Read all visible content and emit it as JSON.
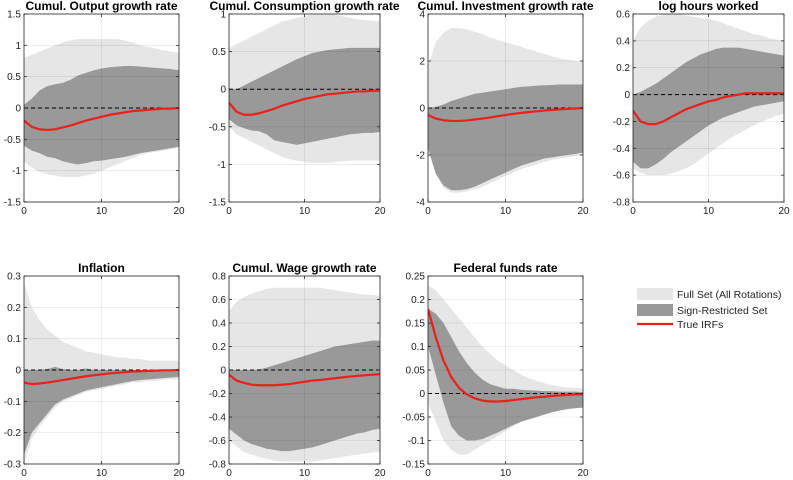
{
  "legend": {
    "placement": "right",
    "entries": [
      {
        "label": "Full Set (All Rotations)",
        "color": "#e6e6e6",
        "kind": "band"
      },
      {
        "label": "Sign-Restricted Set",
        "color": "#999999",
        "kind": "band"
      },
      {
        "label": "True IRFs",
        "color": "#e8211a",
        "kind": "line"
      }
    ]
  },
  "chart_data": [
    {
      "type": "area",
      "title": "Cumul. Output growth rate",
      "x": [
        0,
        1,
        2,
        3,
        4,
        5,
        6,
        7,
        8,
        9,
        10,
        11,
        12,
        13,
        14,
        15,
        16,
        17,
        18,
        19,
        20
      ],
      "xlim": [
        0,
        20
      ],
      "xticks": [
        0,
        10,
        20
      ],
      "ylim": [
        -1.5,
        1.5
      ],
      "yticks": [
        -1.5,
        -1,
        -0.5,
        0,
        0.5,
        1,
        1.5
      ],
      "full_upper": [
        0.8,
        0.85,
        0.9,
        0.95,
        1.0,
        1.05,
        1.08,
        1.1,
        1.1,
        1.1,
        1.1,
        1.1,
        1.1,
        1.08,
        1.05,
        1.0,
        0.98,
        0.95,
        0.92,
        0.9,
        0.88
      ],
      "full_lower": [
        -0.85,
        -0.95,
        -1.02,
        -1.06,
        -1.08,
        -1.1,
        -1.1,
        -1.1,
        -1.08,
        -1.05,
        -1.0,
        -0.95,
        -0.9,
        -0.85,
        -0.8,
        -0.75,
        -0.72,
        -0.7,
        -0.68,
        -0.65,
        -0.62
      ],
      "sign_upper": [
        0.05,
        0.15,
        0.28,
        0.35,
        0.38,
        0.4,
        0.45,
        0.52,
        0.56,
        0.6,
        0.63,
        0.65,
        0.66,
        0.67,
        0.67,
        0.66,
        0.65,
        0.64,
        0.63,
        0.62,
        0.6
      ],
      "sign_lower": [
        -0.6,
        -0.68,
        -0.72,
        -0.78,
        -0.8,
        -0.85,
        -0.88,
        -0.9,
        -0.88,
        -0.85,
        -0.84,
        -0.82,
        -0.8,
        -0.78,
        -0.75,
        -0.72,
        -0.7,
        -0.68,
        -0.66,
        -0.64,
        -0.62
      ],
      "true_irf": [
        -0.2,
        -0.3,
        -0.34,
        -0.35,
        -0.34,
        -0.31,
        -0.28,
        -0.24,
        -0.2,
        -0.17,
        -0.14,
        -0.11,
        -0.09,
        -0.07,
        -0.05,
        -0.04,
        -0.03,
        -0.02,
        -0.01,
        -0.01,
        0
      ]
    },
    {
      "type": "area",
      "title": "Cumul. Consumption growth rate",
      "x": [
        0,
        1,
        2,
        3,
        4,
        5,
        6,
        7,
        8,
        9,
        10,
        11,
        12,
        13,
        14,
        15,
        16,
        17,
        18,
        19,
        20
      ],
      "xlim": [
        0,
        20
      ],
      "xticks": [
        0,
        10,
        20
      ],
      "ylim": [
        -1.5,
        1
      ],
      "yticks": [
        -1.5,
        -1,
        -0.5,
        0,
        0.5,
        1
      ],
      "full_upper": [
        0.55,
        0.6,
        0.65,
        0.7,
        0.75,
        0.8,
        0.85,
        0.9,
        0.92,
        0.95,
        0.97,
        0.99,
        1.0,
        1.0,
        0.99,
        0.97,
        0.95,
        0.93,
        0.92,
        0.91,
        0.9
      ],
      "full_lower": [
        -0.5,
        -0.6,
        -0.65,
        -0.7,
        -0.75,
        -0.8,
        -0.85,
        -0.9,
        -0.93,
        -0.95,
        -0.97,
        -0.98,
        -0.98,
        -0.98,
        -0.97,
        -0.96,
        -0.95,
        -0.95,
        -0.95,
        -0.95,
        -0.95
      ],
      "sign_upper": [
        0.0,
        0.0,
        0.05,
        0.1,
        0.15,
        0.2,
        0.25,
        0.3,
        0.35,
        0.4,
        0.44,
        0.48,
        0.5,
        0.52,
        0.53,
        0.54,
        0.55,
        0.55,
        0.55,
        0.55,
        0.55
      ],
      "sign_lower": [
        -0.4,
        -0.48,
        -0.52,
        -0.55,
        -0.56,
        -0.6,
        -0.68,
        -0.7,
        -0.72,
        -0.74,
        -0.72,
        -0.7,
        -0.68,
        -0.66,
        -0.64,
        -0.62,
        -0.6,
        -0.59,
        -0.58,
        -0.58,
        -0.57
      ],
      "true_irf": [
        -0.18,
        -0.3,
        -0.34,
        -0.34,
        -0.32,
        -0.29,
        -0.26,
        -0.22,
        -0.19,
        -0.16,
        -0.13,
        -0.11,
        -0.09,
        -0.07,
        -0.06,
        -0.05,
        -0.04,
        -0.03,
        -0.03,
        -0.02,
        -0.02
      ]
    },
    {
      "type": "area",
      "title": "Cumul. Investment growth rate",
      "x": [
        0,
        1,
        2,
        3,
        4,
        5,
        6,
        7,
        8,
        9,
        10,
        11,
        12,
        13,
        14,
        15,
        16,
        17,
        18,
        19,
        20
      ],
      "xlim": [
        0,
        20
      ],
      "xticks": [
        0,
        10,
        20
      ],
      "ylim": [
        -4,
        4
      ],
      "yticks": [
        -4,
        -2,
        0,
        2,
        4
      ],
      "full_upper": [
        1.8,
        2.8,
        3.2,
        3.4,
        3.4,
        3.35,
        3.25,
        3.15,
        3.0,
        2.9,
        2.8,
        2.7,
        2.6,
        2.5,
        2.4,
        2.3,
        2.2,
        2.1,
        2.05,
        2.0,
        1.95
      ],
      "full_lower": [
        -1.8,
        -2.8,
        -3.4,
        -3.6,
        -3.6,
        -3.55,
        -3.45,
        -3.35,
        -3.2,
        -3.05,
        -2.9,
        -2.75,
        -2.6,
        -2.5,
        -2.4,
        -2.3,
        -2.2,
        -2.15,
        -2.1,
        -2.05,
        -2.0
      ],
      "sign_upper": [
        0.0,
        0.05,
        0.15,
        0.3,
        0.4,
        0.5,
        0.6,
        0.65,
        0.7,
        0.75,
        0.8,
        0.85,
        0.9,
        0.92,
        0.95,
        0.97,
        0.98,
        1.0,
        1.0,
        1.0,
        1.0
      ],
      "sign_lower": [
        -1.7,
        -2.8,
        -3.3,
        -3.5,
        -3.5,
        -3.45,
        -3.35,
        -3.2,
        -3.05,
        -2.9,
        -2.75,
        -2.6,
        -2.45,
        -2.35,
        -2.25,
        -2.15,
        -2.1,
        -2.05,
        -2.0,
        -1.95,
        -1.9
      ],
      "true_irf": [
        -0.3,
        -0.45,
        -0.52,
        -0.55,
        -0.55,
        -0.53,
        -0.49,
        -0.45,
        -0.4,
        -0.35,
        -0.3,
        -0.25,
        -0.21,
        -0.17,
        -0.14,
        -0.11,
        -0.08,
        -0.06,
        -0.04,
        -0.02,
        0
      ]
    },
    {
      "type": "area",
      "title": "log hours worked",
      "x": [
        0,
        1,
        2,
        3,
        4,
        5,
        6,
        7,
        8,
        9,
        10,
        11,
        12,
        13,
        14,
        15,
        16,
        17,
        18,
        19,
        20
      ],
      "xlim": [
        0,
        20
      ],
      "xticks": [
        0,
        10,
        20
      ],
      "ylim": [
        -0.8,
        0.6
      ],
      "yticks": [
        -0.8,
        -0.6,
        -0.4,
        -0.2,
        0,
        0.2,
        0.4,
        0.6
      ],
      "full_upper": [
        0.4,
        0.5,
        0.55,
        0.58,
        0.6,
        0.6,
        0.6,
        0.59,
        0.58,
        0.57,
        0.56,
        0.55,
        0.53,
        0.51,
        0.49,
        0.47,
        0.45,
        0.44,
        0.42,
        0.41,
        0.4
      ],
      "full_lower": [
        -0.55,
        -0.58,
        -0.6,
        -0.6,
        -0.6,
        -0.59,
        -0.57,
        -0.55,
        -0.52,
        -0.48,
        -0.44,
        -0.4,
        -0.36,
        -0.32,
        -0.29,
        -0.26,
        -0.23,
        -0.2,
        -0.18,
        -0.16,
        -0.14
      ],
      "sign_upper": [
        0.0,
        0.02,
        0.05,
        0.08,
        0.12,
        0.16,
        0.2,
        0.24,
        0.27,
        0.3,
        0.32,
        0.34,
        0.35,
        0.35,
        0.35,
        0.34,
        0.33,
        0.32,
        0.31,
        0.3,
        0.29
      ],
      "sign_lower": [
        -0.5,
        -0.55,
        -0.55,
        -0.52,
        -0.48,
        -0.43,
        -0.39,
        -0.35,
        -0.31,
        -0.27,
        -0.23,
        -0.2,
        -0.17,
        -0.15,
        -0.13,
        -0.11,
        -0.09,
        -0.08,
        -0.07,
        -0.06,
        -0.05
      ],
      "true_irf": [
        -0.12,
        -0.2,
        -0.22,
        -0.22,
        -0.2,
        -0.17,
        -0.14,
        -0.11,
        -0.09,
        -0.07,
        -0.05,
        -0.04,
        -0.02,
        -0.01,
        0,
        0.01,
        0.01,
        0.01,
        0.01,
        0.01,
        0.01
      ]
    },
    {
      "type": "area",
      "title": "Inflation",
      "x": [
        0,
        1,
        2,
        3,
        4,
        5,
        6,
        7,
        8,
        9,
        10,
        11,
        12,
        13,
        14,
        15,
        16,
        17,
        18,
        19,
        20
      ],
      "xlim": [
        0,
        20
      ],
      "xticks": [
        0,
        10,
        20
      ],
      "ylim": [
        -0.3,
        0.3
      ],
      "yticks": [
        -0.3,
        -0.2,
        -0.1,
        0,
        0.1,
        0.2,
        0.3
      ],
      "full_upper": [
        0.28,
        0.2,
        0.16,
        0.13,
        0.11,
        0.09,
        0.08,
        0.07,
        0.06,
        0.055,
        0.05,
        0.045,
        0.04,
        0.04,
        0.035,
        0.035,
        0.03,
        0.03,
        0.03,
        0.03,
        0.03
      ],
      "full_lower": [
        -0.3,
        -0.22,
        -0.18,
        -0.15,
        -0.12,
        -0.1,
        -0.09,
        -0.08,
        -0.07,
        -0.065,
        -0.06,
        -0.055,
        -0.05,
        -0.045,
        -0.04,
        -0.04,
        -0.035,
        -0.035,
        -0.03,
        -0.03,
        -0.03
      ],
      "sign_upper": [
        0,
        0,
        0,
        0.003,
        0.01,
        0.003,
        0,
        0,
        0.005,
        0,
        0,
        0,
        0,
        0,
        0,
        0,
        0,
        0,
        0,
        0,
        0
      ],
      "sign_lower": [
        -0.27,
        -0.2,
        -0.17,
        -0.14,
        -0.11,
        -0.095,
        -0.085,
        -0.075,
        -0.065,
        -0.06,
        -0.055,
        -0.05,
        -0.045,
        -0.04,
        -0.035,
        -0.032,
        -0.03,
        -0.028,
        -0.026,
        -0.024,
        -0.022
      ],
      "true_irf": [
        -0.04,
        -0.045,
        -0.043,
        -0.04,
        -0.036,
        -0.032,
        -0.028,
        -0.024,
        -0.02,
        -0.017,
        -0.014,
        -0.011,
        -0.009,
        -0.007,
        -0.005,
        -0.004,
        -0.003,
        -0.002,
        -0.001,
        -0.001,
        0
      ]
    },
    {
      "type": "area",
      "title": "Cumul. Wage growth rate",
      "x": [
        0,
        1,
        2,
        3,
        4,
        5,
        6,
        7,
        8,
        9,
        10,
        11,
        12,
        13,
        14,
        15,
        16,
        17,
        18,
        19,
        20
      ],
      "xlim": [
        0,
        20
      ],
      "xticks": [
        0,
        10,
        20
      ],
      "ylim": [
        -0.8,
        0.8
      ],
      "yticks": [
        -0.8,
        -0.6,
        -0.4,
        -0.2,
        0,
        0.2,
        0.4,
        0.6,
        0.8
      ],
      "full_upper": [
        0.5,
        0.58,
        0.62,
        0.65,
        0.67,
        0.69,
        0.7,
        0.7,
        0.7,
        0.7,
        0.7,
        0.7,
        0.7,
        0.69,
        0.68,
        0.67,
        0.66,
        0.65,
        0.64,
        0.64,
        0.63
      ],
      "full_lower": [
        -0.6,
        -0.65,
        -0.7,
        -0.72,
        -0.74,
        -0.76,
        -0.77,
        -0.78,
        -0.78,
        -0.78,
        -0.78,
        -0.78,
        -0.77,
        -0.76,
        -0.75,
        -0.74,
        -0.73,
        -0.72,
        -0.71,
        -0.7,
        -0.7
      ],
      "sign_upper": [
        0,
        0,
        0,
        0,
        0.005,
        0.02,
        0.04,
        0.06,
        0.08,
        0.1,
        0.12,
        0.14,
        0.16,
        0.18,
        0.2,
        0.21,
        0.22,
        0.23,
        0.24,
        0.25,
        0.25
      ],
      "sign_lower": [
        -0.5,
        -0.55,
        -0.6,
        -0.63,
        -0.65,
        -0.67,
        -0.68,
        -0.69,
        -0.69,
        -0.68,
        -0.67,
        -0.66,
        -0.64,
        -0.62,
        -0.6,
        -0.58,
        -0.56,
        -0.54,
        -0.53,
        -0.51,
        -0.5
      ],
      "true_irf": [
        -0.04,
        -0.09,
        -0.11,
        -0.125,
        -0.13,
        -0.13,
        -0.13,
        -0.125,
        -0.12,
        -0.11,
        -0.1,
        -0.09,
        -0.085,
        -0.078,
        -0.07,
        -0.063,
        -0.056,
        -0.05,
        -0.045,
        -0.04,
        -0.035
      ]
    },
    {
      "type": "area",
      "title": "Federal funds rate",
      "x": [
        0,
        1,
        2,
        3,
        4,
        5,
        6,
        7,
        8,
        9,
        10,
        11,
        12,
        13,
        14,
        15,
        16,
        17,
        18,
        19,
        20
      ],
      "xlim": [
        0,
        20
      ],
      "xticks": [
        0,
        10,
        20
      ],
      "ylim": [
        -0.15,
        0.25
      ],
      "yticks": [
        -0.15,
        -0.1,
        -0.05,
        0,
        0.05,
        0.1,
        0.15,
        0.2,
        0.25
      ],
      "full_upper": [
        0.23,
        0.22,
        0.2,
        0.18,
        0.16,
        0.14,
        0.12,
        0.1,
        0.085,
        0.07,
        0.06,
        0.05,
        0.04,
        0.033,
        0.027,
        0.022,
        0.018,
        0.015,
        0.013,
        0.012,
        0.011
      ],
      "full_lower": [
        -0.02,
        -0.06,
        -0.1,
        -0.12,
        -0.13,
        -0.13,
        -0.12,
        -0.11,
        -0.1,
        -0.09,
        -0.08,
        -0.07,
        -0.06,
        -0.055,
        -0.05,
        -0.045,
        -0.04,
        -0.037,
        -0.034,
        -0.032,
        -0.03
      ],
      "sign_upper": [
        0.18,
        0.17,
        0.15,
        0.12,
        0.09,
        0.065,
        0.045,
        0.03,
        0.02,
        0.015,
        0.01,
        0.01,
        0.008,
        0.007,
        0.006,
        0.005,
        0.005,
        0.004,
        0.004,
        0.004,
        0.003
      ],
      "sign_lower": [
        0.1,
        0.04,
        -0.02,
        -0.07,
        -0.09,
        -0.1,
        -0.1,
        -0.097,
        -0.09,
        -0.083,
        -0.075,
        -0.067,
        -0.06,
        -0.055,
        -0.05,
        -0.045,
        -0.04,
        -0.036,
        -0.033,
        -0.031,
        -0.03
      ],
      "true_irf": [
        0.18,
        0.12,
        0.07,
        0.035,
        0.012,
        -0.002,
        -0.01,
        -0.015,
        -0.017,
        -0.017,
        -0.016,
        -0.014,
        -0.012,
        -0.01,
        -0.008,
        -0.007,
        -0.005,
        -0.004,
        -0.003,
        -0.002,
        -0.002
      ]
    }
  ]
}
